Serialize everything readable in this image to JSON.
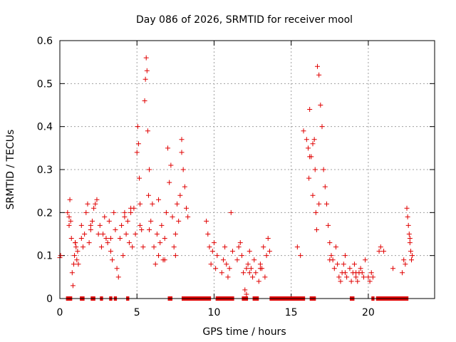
{
  "chart_data": {
    "type": "scatter",
    "title": "Day 086 of 2026, SRMTID for receiver mool",
    "xlabel": "GPS time / hours",
    "ylabel": "SRMTID / TECUs",
    "xlim": [
      0,
      24.3
    ],
    "ylim": [
      0,
      0.6
    ],
    "xticks": [
      0,
      5,
      10,
      15,
      20
    ],
    "yticks": [
      0,
      0.1,
      0.2,
      0.3,
      0.4,
      0.5,
      0.6
    ],
    "xtick_labels": [
      "0",
      "5",
      "10",
      "15",
      "20"
    ],
    "ytick_labels": [
      "0",
      "0.1",
      "0.2",
      "0.3",
      "0.4",
      "0.5",
      "0.6"
    ],
    "grid": true,
    "marker": "+",
    "color": "#e00000",
    "series": [
      {
        "name": "SRMTID",
        "x": [
          0.0,
          0.05,
          0.6,
          0.65,
          0.7,
          0.75,
          0.8,
          0.85,
          0.9,
          0.95,
          1.0,
          1.05,
          1.1,
          1.15,
          1.2,
          1.4,
          1.5,
          1.6,
          1.7,
          1.8,
          1.9,
          2.0,
          2.1,
          2.3,
          2.4,
          2.5,
          2.6,
          2.7,
          2.8,
          2.9,
          3.0,
          3.1,
          3.2,
          3.3,
          3.4,
          3.5,
          3.6,
          3.7,
          3.8,
          3.9,
          4.0,
          4.1,
          4.2,
          4.3,
          4.4,
          4.5,
          4.6,
          4.7,
          4.8,
          4.9,
          5.0,
          5.05,
          5.1,
          5.15,
          5.2,
          5.3,
          5.4,
          5.5,
          5.55,
          5.6,
          5.65,
          5.7,
          5.75,
          5.8,
          5.9,
          6.0,
          6.1,
          6.2,
          6.3,
          6.4,
          6.5,
          6.6,
          6.7,
          6.8,
          6.9,
          7.0,
          7.1,
          7.2,
          7.3,
          7.4,
          7.5,
          7.6,
          7.7,
          7.8,
          7.9,
          8.0,
          8.1,
          8.2,
          8.3,
          9.5,
          9.6,
          9.7,
          9.8,
          9.9,
          10.0,
          10.1,
          10.2,
          10.5,
          10.6,
          10.7,
          10.8,
          10.9,
          11.0,
          11.1,
          11.2,
          11.5,
          11.6,
          11.7,
          11.8,
          11.9,
          12.0,
          12.1,
          12.2,
          12.3,
          12.4,
          12.5,
          12.6,
          12.7,
          12.9,
          13.0,
          13.1,
          13.2,
          13.3,
          13.4,
          13.5,
          13.6,
          15.4,
          15.6,
          15.8,
          16.0,
          16.1,
          16.15,
          16.2,
          16.3,
          16.4,
          16.5,
          16.55,
          16.6,
          16.65,
          16.7,
          16.8,
          16.9,
          17.0,
          17.1,
          17.2,
          17.3,
          17.4,
          17.5,
          17.6,
          17.7,
          17.8,
          17.9,
          18.0,
          18.1,
          18.2,
          18.3,
          18.4,
          18.5,
          18.6,
          18.8,
          18.9,
          19.0,
          19.1,
          19.2,
          19.3,
          19.4,
          19.5,
          19.6,
          19.7,
          19.8,
          20.0,
          20.1,
          20.2,
          20.3,
          20.7,
          20.8,
          21.6,
          22.2,
          22.4,
          22.5,
          22.55,
          22.6,
          22.65,
          22.7,
          22.75,
          22.8,
          22.85,
          0.5,
          0.6,
          1.0,
          1.4,
          2.0,
          2.2,
          3.3,
          4.2,
          4.6,
          5.2,
          5.8,
          6.4,
          6.8,
          7.5,
          7.9,
          12.1,
          12.3,
          13.0,
          16.2,
          16.4,
          16.8,
          17.5,
          18.5,
          19.2,
          21.0,
          22.3,
          22.7
        ],
        "y": [
          0.095,
          0.1,
          0.19,
          0.23,
          0.18,
          0.14,
          0.06,
          0.03,
          0.08,
          0.1,
          0.13,
          0.12,
          0.09,
          0.11,
          0.08,
          0.17,
          0.12,
          0.15,
          0.2,
          0.22,
          0.13,
          0.16,
          0.18,
          0.22,
          0.23,
          0.15,
          0.17,
          0.12,
          0.15,
          0.19,
          0.14,
          0.13,
          0.18,
          0.11,
          0.09,
          0.2,
          0.16,
          0.07,
          0.05,
          0.14,
          0.17,
          0.1,
          0.19,
          0.15,
          0.18,
          0.13,
          0.2,
          0.12,
          0.21,
          0.15,
          0.34,
          0.4,
          0.36,
          0.28,
          0.22,
          0.16,
          0.12,
          0.46,
          0.51,
          0.56,
          0.53,
          0.39,
          0.24,
          0.3,
          0.18,
          0.22,
          0.12,
          0.08,
          0.15,
          0.1,
          0.13,
          0.17,
          0.09,
          0.14,
          0.2,
          0.35,
          0.27,
          0.31,
          0.19,
          0.12,
          0.15,
          0.22,
          0.18,
          0.24,
          0.37,
          0.3,
          0.26,
          0.21,
          0.19,
          0.18,
          0.15,
          0.12,
          0.08,
          0.11,
          0.13,
          0.07,
          0.1,
          0.06,
          0.09,
          0.12,
          0.08,
          0.05,
          0.07,
          0.2,
          0.11,
          0.09,
          0.12,
          0.13,
          0.1,
          0.06,
          0.02,
          0.01,
          0.08,
          0.11,
          0.07,
          0.05,
          0.09,
          0.06,
          0.04,
          0.08,
          0.07,
          0.12,
          0.05,
          0.1,
          0.14,
          0.11,
          0.12,
          0.1,
          0.39,
          0.37,
          0.35,
          0.28,
          0.44,
          0.33,
          0.24,
          0.37,
          0.3,
          0.2,
          0.16,
          0.54,
          0.52,
          0.45,
          0.4,
          0.3,
          0.26,
          0.22,
          0.17,
          0.13,
          0.1,
          0.09,
          0.07,
          0.12,
          0.08,
          0.05,
          0.04,
          0.06,
          0.08,
          0.1,
          0.05,
          0.07,
          0.04,
          0.06,
          0.08,
          0.05,
          0.04,
          0.06,
          0.07,
          0.06,
          0.05,
          0.09,
          0.05,
          0.04,
          0.06,
          0.05,
          0.11,
          0.12,
          0.07,
          0.06,
          0.08,
          0.21,
          0.19,
          0.17,
          0.15,
          0.13,
          0.11,
          0.09,
          0.1,
          0.2,
          0.17,
          0.13,
          0.14,
          0.17,
          0.21,
          0.14,
          0.2,
          0.21,
          0.17,
          0.16,
          0.23,
          0.09,
          0.1,
          0.34,
          0.07,
          0.06,
          0.07,
          0.33,
          0.36,
          0.22,
          0.09,
          0.06,
          0.06,
          0.11,
          0.09,
          0.14
        ]
      }
    ],
    "zero_intervals": [
      [
        0.4,
        0.8
      ],
      [
        1.3,
        1.6
      ],
      [
        2.0,
        2.3
      ],
      [
        2.6,
        2.8
      ],
      [
        3.2,
        3.4
      ],
      [
        3.5,
        3.7
      ],
      [
        4.3,
        4.5
      ],
      [
        7.0,
        7.3
      ],
      [
        7.9,
        9.8
      ],
      [
        10.1,
        11.3
      ],
      [
        11.8,
        12.2
      ],
      [
        12.5,
        12.9
      ],
      [
        13.6,
        15.9
      ],
      [
        16.2,
        16.6
      ],
      [
        18.8,
        19.1
      ],
      [
        20.2,
        20.4
      ],
      [
        20.5,
        22.6
      ]
    ]
  }
}
